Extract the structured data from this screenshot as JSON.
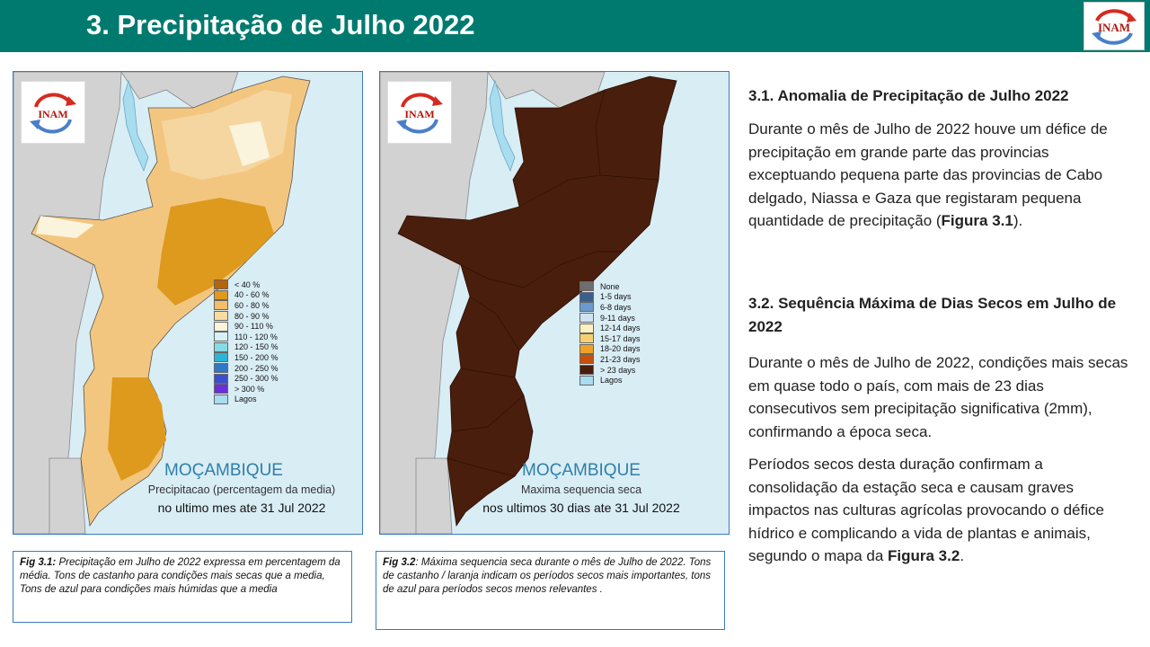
{
  "header": {
    "title": "3. Precipitação de Julho 2022",
    "logo_text": "INAM"
  },
  "map1": {
    "logo_text": "INAM",
    "country": "MOÇAMBIQUE",
    "subtitle": "Precipitacao (percentagem da media)",
    "period": "no ultimo mes ate 31 Jul 2022",
    "legend": [
      {
        "label": "< 40 %",
        "color": "#b5650a"
      },
      {
        "label": "40 - 60 %",
        "color": "#de9a1d"
      },
      {
        "label": "60 - 80 %",
        "color": "#f3bf69"
      },
      {
        "label": "80 - 90 %",
        "color": "#f9dca0"
      },
      {
        "label": "90 - 110 %",
        "color": "#fbf4dc"
      },
      {
        "label": "110 - 120 %",
        "color": "#d5f2f6"
      },
      {
        "label": "120 - 150 %",
        "color": "#86dbe8"
      },
      {
        "label": "150 - 200 %",
        "color": "#2bb4d8"
      },
      {
        "label": "200 - 250 %",
        "color": "#2f78c8"
      },
      {
        "label": "250 - 300 %",
        "color": "#3a4fcf"
      },
      {
        "label": "> 300 %",
        "color": "#6a2fd8"
      },
      {
        "label": "Lagos",
        "color": "#a8dcef"
      }
    ]
  },
  "map2": {
    "logo_text": "INAM",
    "country": "MOÇAMBIQUE",
    "subtitle": "Maxima sequencia seca",
    "period": "nos ultimos 30 dias ate 31 Jul 2022",
    "legend": [
      {
        "label": "None",
        "color": "#6e6e6e"
      },
      {
        "label": "1-5 days",
        "color": "#3b5f8f"
      },
      {
        "label": "6-8 days",
        "color": "#6a9ad0"
      },
      {
        "label": "9-11 days",
        "color": "#cfe3f2"
      },
      {
        "label": "12-14 days",
        "color": "#fbf1c0"
      },
      {
        "label": "15-17 days",
        "color": "#f7cf73"
      },
      {
        "label": "18-20 days",
        "color": "#f0a125"
      },
      {
        "label": "21-23 days",
        "color": "#c7500c"
      },
      {
        "label": "> 23 days",
        "color": "#4a1e0c"
      },
      {
        "label": "Lagos",
        "color": "#a8dcef"
      }
    ]
  },
  "caption1": {
    "label": "Fig 3.1:",
    "text": " Precipitação em Julho de 2022  expressa em percentagem da média. Tons de castanho para condições mais secas que a media, Tons de azul para condições mais húmidas que a media"
  },
  "caption2": {
    "label": "Fig 3.2",
    "text": ": Máxima sequencia seca durante o mês de Julho de 2022.  Tons de castanho / laranja indicam os períodos secos mais importantes, tons de azul para períodos secos menos relevantes ."
  },
  "section1": {
    "heading": "3.1. Anomalia de Precipitação de Julho 2022",
    "para_start": "Durante o mês de Julho de 2022 houve um défice de precipitação em grande parte das provincias exceptuando pequena parte das provincias de Cabo delgado, Niassa e Gaza que registaram pequena quantidade de precipitação (",
    "para_ref": "Figura 3.1",
    "para_end": ")."
  },
  "section2": {
    "heading": "3.2. Sequência Máxima de Dias Secos em Julho de 2022",
    "para1": "Durante o mês de Julho de  2022, condições mais secas em quase todo o país, com mais de 23 dias consecutivos sem precipitação significativa (2mm), confirmando a época seca.",
    "para2_start": "Períodos secos desta duração confirmam a consolidação da estação seca e causam graves impactos nas culturas agrícolas  provocando o défice hídrico e complicando a vida de plantas e animais, segundo o mapa da ",
    "para2_ref": "Figura 3.2",
    "para2_end": "."
  }
}
